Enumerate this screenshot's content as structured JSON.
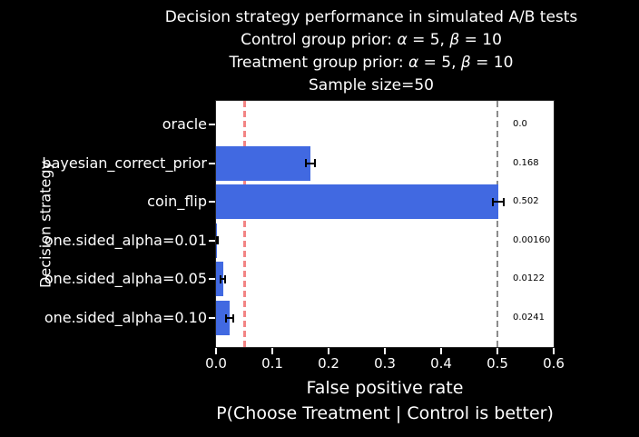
{
  "figure": {
    "background": "#000000",
    "plot_background": "#ffffff"
  },
  "title": {
    "line1": "Decision strategy performance in simulated A/B tests",
    "line2": {
      "pre": "Control group prior: ",
      "alpha": "α",
      "mid": " = 5, ",
      "beta": "β",
      "post": " = 10"
    },
    "line3": {
      "pre": "Treatment group prior: ",
      "alpha": "α",
      "mid": " = 5, ",
      "beta": "β",
      "post": " = 10"
    },
    "line4": "Sample size=50"
  },
  "chart_data": {
    "type": "bar",
    "orientation": "horizontal",
    "title": "Decision strategy performance in simulated A/B tests",
    "subtitle_lines": [
      "Control group prior: α = 5, β = 10",
      "Treatment group prior: α = 5, β = 10",
      "Sample size=50"
    ],
    "ylabel": "Decision strategy",
    "xlabel_line1": "False positive rate",
    "xlabel_line2": "P(Choose Treatment | Control is better)",
    "categories": [
      "oracle",
      "bayesian_correct_prior",
      "coin_flip",
      "one.sided_alpha=0.01",
      "one.sided_alpha=0.05",
      "one.sided_alpha=0.10"
    ],
    "values": [
      0.0,
      0.168,
      0.502,
      0.0016,
      0.0122,
      0.0241
    ],
    "value_labels": [
      "0.0",
      "0.168",
      "0.502",
      "0.00160",
      "0.0122",
      "0.0241"
    ],
    "errors": [
      0,
      0.008,
      0.01,
      0.002,
      0.004,
      0.006
    ],
    "xlim": [
      0,
      0.6
    ],
    "xticks": [
      0,
      0.1,
      0.2,
      0.3,
      0.4,
      0.5,
      0.6
    ],
    "xtick_labels": [
      "0.0",
      "0.1",
      "0.2",
      "0.3",
      "0.4",
      "0.5",
      "0.6"
    ],
    "bar_color": "#4169e1",
    "error_color": "#000000",
    "vlines": [
      {
        "x": 0.05,
        "color": "#f28585",
        "style": "dashed",
        "name": "alpha-threshold-line"
      },
      {
        "x": 0.5,
        "color": "#8c8c8c",
        "style": "dashed",
        "name": "coin-flip-reference-line"
      }
    ],
    "grid": false,
    "legend": null
  }
}
